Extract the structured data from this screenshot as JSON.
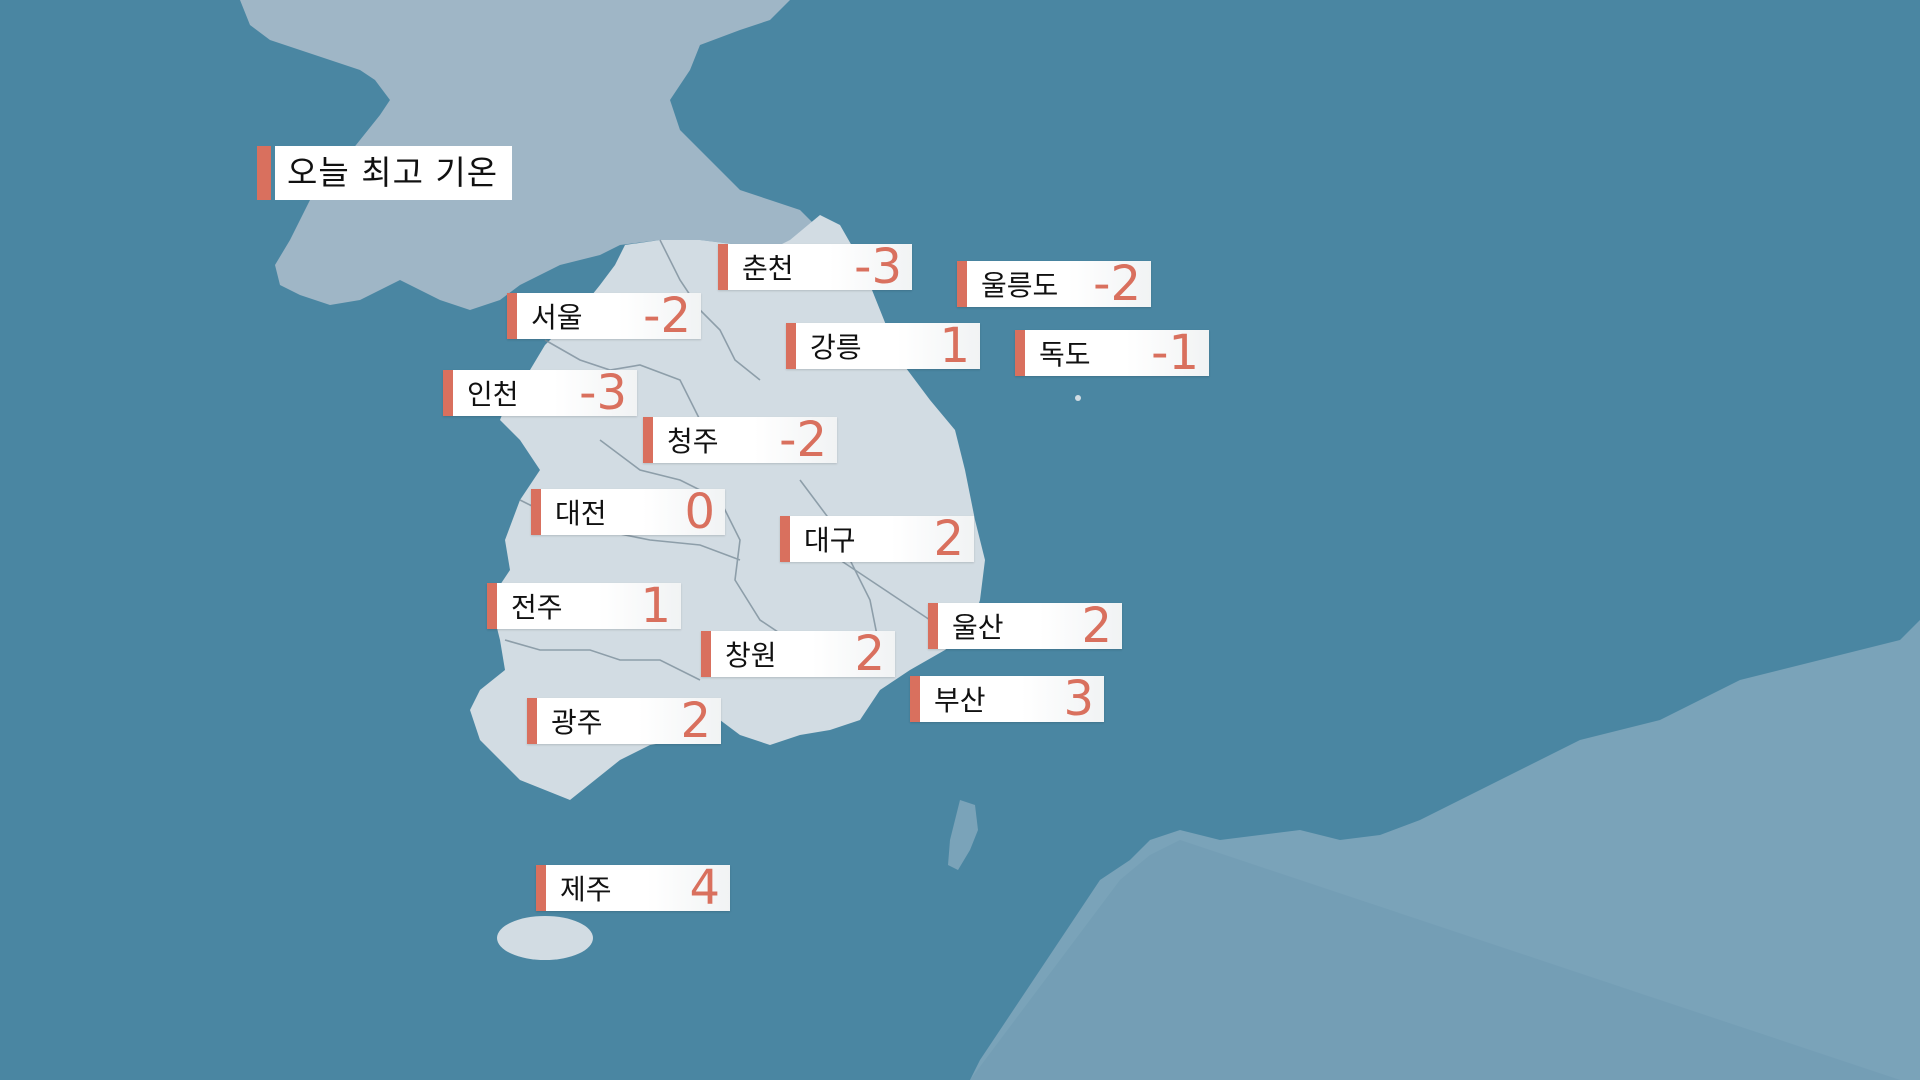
{
  "title": "오늘 최고 기온",
  "colors": {
    "sea": "#4a86a2",
    "land_korea": "#d2dce3",
    "land_north": "#9fb6c6",
    "land_japan": "#7aa3b9",
    "accent": "#d9705e",
    "label_bg": "#ffffff"
  },
  "cities": [
    {
      "name": "춘천",
      "temp": "-3"
    },
    {
      "name": "울릉도",
      "temp": "-2"
    },
    {
      "name": "서울",
      "temp": "-2"
    },
    {
      "name": "강릉",
      "temp": "1"
    },
    {
      "name": "독도",
      "temp": "-1"
    },
    {
      "name": "인천",
      "temp": "-3"
    },
    {
      "name": "청주",
      "temp": "-2"
    },
    {
      "name": "대전",
      "temp": "0"
    },
    {
      "name": "대구",
      "temp": "2"
    },
    {
      "name": "전주",
      "temp": "1"
    },
    {
      "name": "울산",
      "temp": "2"
    },
    {
      "name": "창원",
      "temp": "2"
    },
    {
      "name": "부산",
      "temp": "3"
    },
    {
      "name": "광주",
      "temp": "2"
    },
    {
      "name": "제주",
      "temp": "4"
    }
  ]
}
